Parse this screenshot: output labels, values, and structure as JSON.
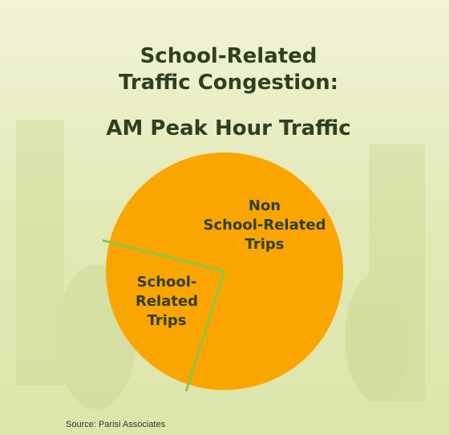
{
  "chart_data": {
    "type": "pie",
    "title": "School-Related Traffic Congestion:",
    "subtitle": "AM Peak Hour Traffic",
    "categories": [
      "Non School-Related Trips",
      "School-Related Trips"
    ],
    "values": [
      76,
      24
    ],
    "color": "#fba500",
    "divider_color": "#8cc63f",
    "source": "Source: Parisi Associates"
  }
}
